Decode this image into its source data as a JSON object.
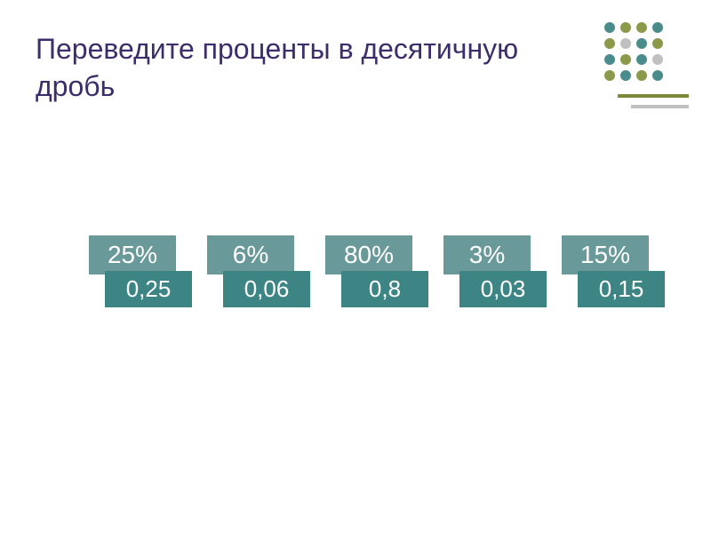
{
  "title": "Переведите проценты в десятичную дробь",
  "pairs": [
    {
      "percent": "25%",
      "decimal": "0,25"
    },
    {
      "percent": "6%",
      "decimal": "0,06"
    },
    {
      "percent": "80%",
      "decimal": "0,8"
    },
    {
      "percent": "3%",
      "decimal": "0,03"
    },
    {
      "percent": "15%",
      "decimal": "0,15"
    }
  ],
  "colors": {
    "title_color": "#3d2e6b",
    "percent_bg": "#6a9999",
    "decimal_bg": "#3d8585",
    "text_color": "#ffffff",
    "background": "#ffffff",
    "dot_teal": "#4a8c8c",
    "dot_olive": "#8a9a4a",
    "dot_gray": "#c0c0c0",
    "line_olive": "#7a8a3a",
    "line_gray": "#c0c0c0"
  },
  "typography": {
    "title_fontsize": 32,
    "box_fontsize": 28
  },
  "decoration": {
    "dot_rows": 4,
    "dot_cols": 4,
    "dot_pattern": [
      [
        "teal",
        "olive",
        "olive",
        "teal"
      ],
      [
        "olive",
        "gray",
        "teal",
        "olive"
      ],
      [
        "teal",
        "olive",
        "teal",
        "gray"
      ],
      [
        "olive",
        "teal",
        "olive",
        "teal"
      ]
    ],
    "lines": [
      "olive",
      "gray"
    ]
  }
}
